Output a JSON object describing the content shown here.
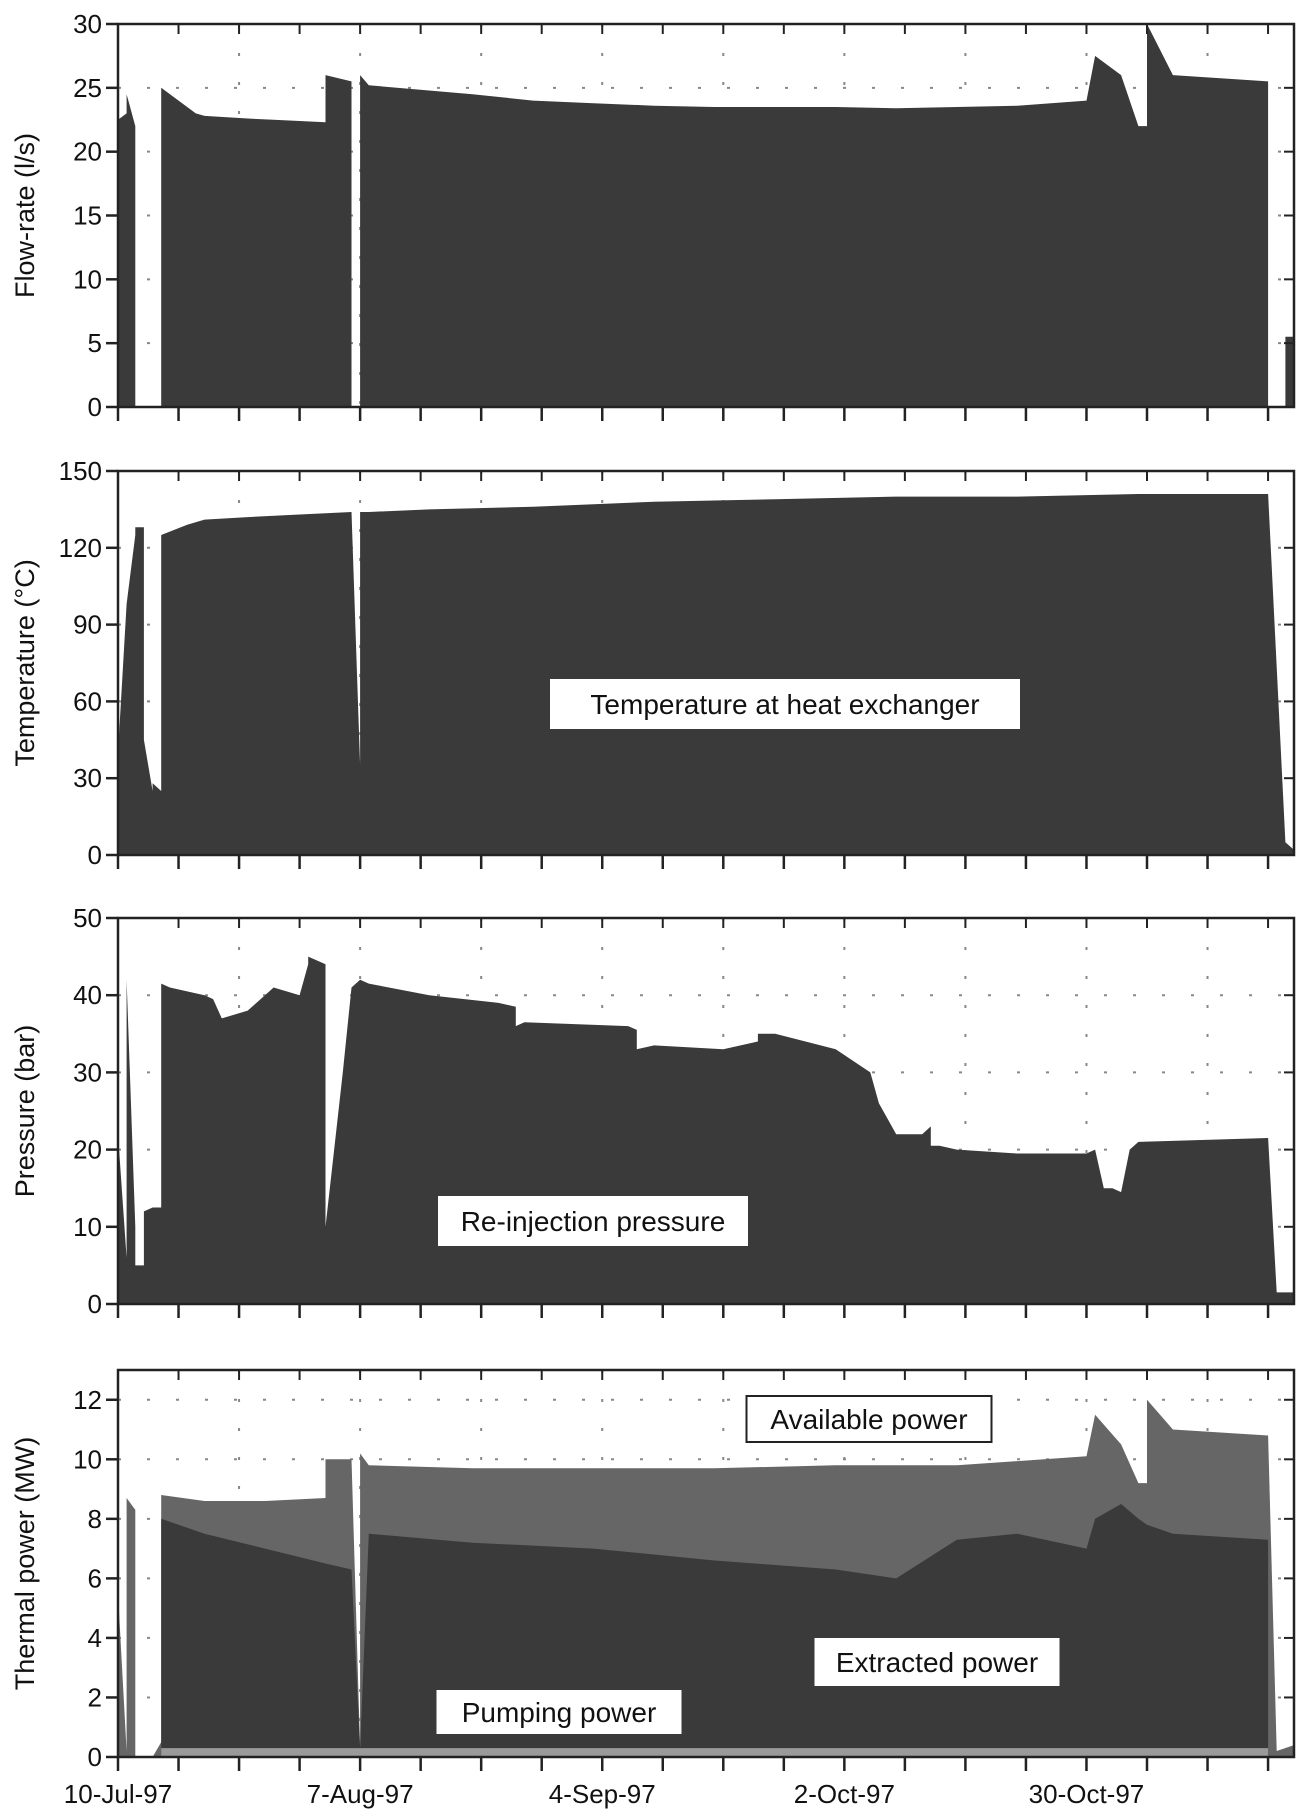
{
  "colors": {
    "dark_fill": "#3a3a3a",
    "mid_fill": "#666666",
    "light_fill": "#9a9a9a",
    "grid": "#888888",
    "frame": "#222222",
    "label_bg": "#ffffff"
  },
  "x_tick_labels": [
    "10-Jul-97",
    "7-Aug-97",
    "4-Sep-97",
    "2-Oct-97",
    "30-Oct-97"
  ],
  "chart_data": [
    {
      "type": "area",
      "ylabel": "Flow-rate (l/s)",
      "ylim": [
        0,
        30
      ],
      "yticks": [
        0,
        5,
        10,
        15,
        20,
        25,
        30
      ],
      "xlim": [
        "1997-07-10",
        "1997-11-23"
      ],
      "grid": true,
      "series": [
        {
          "x": [
            "1997-07-10",
            "1997-07-10",
            "1997-07-11",
            "1997-07-11",
            "1997-07-12",
            "1997-07-12",
            "1997-07-12",
            "1997-07-14",
            "1997-07-14",
            "1997-07-15",
            "1997-07-15",
            "1997-07-19",
            "1997-07-19",
            "1997-07-20",
            "1997-07-25",
            "1997-07-28",
            "1997-08-03",
            "1997-08-03",
            "1997-08-06",
            "1997-08-06",
            "1997-08-07",
            "1997-08-07",
            "1997-08-08",
            "1997-08-20",
            "1997-08-27",
            "1997-09-03",
            "1997-09-10",
            "1997-09-17",
            "1997-09-24",
            "1997-10-01",
            "1997-10-08",
            "1997-10-15",
            "1997-10-22",
            "1997-10-30",
            "1997-10-31",
            "1997-11-03",
            "1997-11-05",
            "1997-11-06",
            "1997-11-06",
            "1997-11-09",
            "1997-11-20",
            "1997-11-20",
            "1997-11-22",
            "1997-11-22",
            "1997-11-23"
          ],
          "y": [
            0,
            22.5,
            23,
            24.5,
            22,
            22,
            0,
            0,
            0,
            0,
            25,
            23,
            23,
            22.8,
            22.6,
            22.5,
            22.3,
            26,
            25.5,
            0,
            0,
            26,
            25.2,
            24.5,
            24,
            23.8,
            23.6,
            23.5,
            23.5,
            23.5,
            23.4,
            23.5,
            23.6,
            24,
            27.5,
            26,
            22,
            22,
            30,
            26,
            25.5,
            0,
            0,
            5.5,
            5.5
          ]
        }
      ]
    },
    {
      "type": "area",
      "ylabel": "Temperature (°C)",
      "ylim": [
        0,
        150
      ],
      "yticks": [
        0,
        30,
        60,
        90,
        120,
        150
      ],
      "grid": true,
      "annotations": [
        "Temperature at heat exchanger"
      ],
      "series": [
        {
          "x": [
            "1997-07-10",
            "1997-07-10",
            "1997-07-11",
            "1997-07-12",
            "1997-07-12",
            "1997-07-13",
            "1997-07-13",
            "1997-07-14",
            "1997-07-14",
            "1997-07-15",
            "1997-07-15",
            "1997-07-18",
            "1997-07-20",
            "1997-07-25",
            "1997-07-31",
            "1997-08-06",
            "1997-08-07",
            "1997-08-07",
            "1997-08-08",
            "1997-08-15",
            "1997-08-27",
            "1997-09-10",
            "1997-09-24",
            "1997-10-08",
            "1997-10-22",
            "1997-11-05",
            "1997-11-12",
            "1997-11-20",
            "1997-11-22",
            "1997-11-23"
          ],
          "y": [
            0,
            40,
            98,
            125,
            128,
            128,
            45,
            25,
            28,
            25,
            125,
            129,
            131,
            132,
            133,
            134,
            35,
            134,
            134,
            135,
            136,
            138,
            139,
            140,
            140,
            141,
            141,
            141,
            5,
            2
          ]
        }
      ]
    },
    {
      "type": "area",
      "ylabel": "Pressure (bar)",
      "ylim": [
        0,
        50
      ],
      "yticks": [
        0,
        10,
        20,
        30,
        40,
        50
      ],
      "grid": true,
      "annotations": [
        "Re-injection pressure"
      ],
      "series": [
        {
          "x": [
            "1997-07-10",
            "1997-07-10",
            "1997-07-11",
            "1997-07-11",
            "1997-07-11",
            "1997-07-12",
            "1997-07-12",
            "1997-07-13",
            "1997-07-13",
            "1997-07-14",
            "1997-07-15",
            "1997-07-15",
            "1997-07-16",
            "1997-07-20",
            "1997-07-21",
            "1997-07-22",
            "1997-07-25",
            "1997-07-27",
            "1997-07-28",
            "1997-07-31",
            "1997-08-01",
            "1997-08-01",
            "1997-08-03",
            "1997-08-03",
            "1997-08-05",
            "1997-08-06",
            "1997-08-07",
            "1997-08-08",
            "1997-08-15",
            "1997-08-23",
            "1997-08-25",
            "1997-08-25",
            "1997-08-26",
            "1997-09-07",
            "1997-09-08",
            "1997-09-08",
            "1997-09-10",
            "1997-09-18",
            "1997-09-22",
            "1997-09-22",
            "1997-09-24",
            "1997-10-01",
            "1997-10-05",
            "1997-10-06",
            "1997-10-08",
            "1997-10-11",
            "1997-10-12",
            "1997-10-12",
            "1997-10-13",
            "1997-10-15",
            "1997-10-22",
            "1997-10-30",
            "1997-10-31",
            "1997-11-01",
            "1997-11-02",
            "1997-11-03",
            "1997-11-04",
            "1997-11-05",
            "1997-11-20",
            "1997-11-21",
            "1997-11-23"
          ],
          "y": [
            0,
            22,
            6,
            40,
            42,
            10,
            5,
            5,
            12,
            12.5,
            12.5,
            41.5,
            41,
            40,
            39.5,
            37,
            38,
            40,
            41,
            40,
            44,
            45,
            44,
            10,
            30,
            41,
            42,
            41.5,
            40,
            39,
            38.5,
            36,
            36.5,
            36,
            35.5,
            33,
            33.5,
            33,
            34,
            35,
            35,
            33,
            30,
            26,
            22,
            22,
            23,
            20.5,
            20.5,
            20,
            19.5,
            19.5,
            20,
            15,
            15,
            14.5,
            20,
            21,
            21.5,
            1.5,
            1.5
          ]
        }
      ]
    },
    {
      "type": "area",
      "ylabel": "Thermal power (MW)",
      "ylim": [
        0,
        13
      ],
      "yticks": [
        0,
        2,
        4,
        6,
        8,
        10,
        12
      ],
      "grid": true,
      "annotations": [
        "Available power",
        "Extracted power",
        "Pumping power"
      ],
      "series": [
        {
          "name": "Available power",
          "x": [
            "1997-07-10",
            "1997-07-10",
            "1997-07-11",
            "1997-07-11",
            "1997-07-12",
            "1997-07-12",
            "1997-07-14",
            "1997-07-15",
            "1997-07-15",
            "1997-07-20",
            "1997-07-27",
            "1997-08-03",
            "1997-08-03",
            "1997-08-06",
            "1997-08-07",
            "1997-08-07",
            "1997-08-08",
            "1997-08-20",
            "1997-09-03",
            "1997-09-17",
            "1997-10-01",
            "1997-10-15",
            "1997-10-30",
            "1997-10-31",
            "1997-11-03",
            "1997-11-05",
            "1997-11-06",
            "1997-11-06",
            "1997-11-09",
            "1997-11-20",
            "1997-11-21",
            "1997-11-23"
          ],
          "y": [
            0,
            5.5,
            0.2,
            8.7,
            8.3,
            0,
            0,
            0.5,
            8.8,
            8.6,
            8.6,
            8.7,
            10,
            10,
            0.3,
            10.2,
            9.8,
            9.7,
            9.7,
            9.7,
            9.8,
            9.8,
            10.1,
            11.5,
            10.5,
            9.2,
            9.2,
            12,
            11,
            10.8,
            0.2,
            0.4
          ]
        },
        {
          "name": "Extracted power",
          "x": [
            "1997-07-15",
            "1997-07-15",
            "1997-07-20",
            "1997-07-27",
            "1997-08-03",
            "1997-08-06",
            "1997-08-07",
            "1997-08-08",
            "1997-08-20",
            "1997-09-03",
            "1997-09-17",
            "1997-10-01",
            "1997-10-08",
            "1997-10-15",
            "1997-10-22",
            "1997-10-30",
            "1997-10-31",
            "1997-11-03",
            "1997-11-05",
            "1997-11-06",
            "1997-11-09",
            "1997-11-20"
          ],
          "y": [
            0.5,
            8.0,
            7.5,
            7.0,
            6.5,
            6.3,
            0.3,
            7.5,
            7.2,
            7.0,
            6.6,
            6.3,
            6.0,
            7.3,
            7.5,
            7.0,
            8.0,
            8.5,
            8.0,
            7.8,
            7.5,
            7.3
          ]
        },
        {
          "name": "Pumping power",
          "x": [
            "1997-07-15",
            "1997-11-20"
          ],
          "y": [
            0.3,
            0.3
          ]
        }
      ]
    }
  ]
}
